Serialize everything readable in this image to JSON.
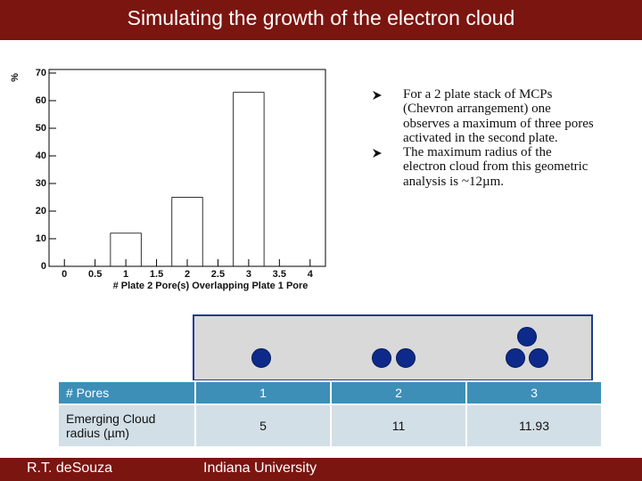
{
  "header": {
    "title": "Simulating the growth of the electron cloud"
  },
  "chart_data": {
    "type": "histogram",
    "y_label": "%",
    "x_label": "# Plate 2 Pore(s) Overlapping Plate 1 Pore",
    "bins": [
      0.75,
      1.25,
      1.75,
      2.25,
      2.75,
      3.25
    ],
    "values": [
      12,
      0,
      25,
      0,
      63
    ],
    "color": "#000000",
    "xlim": [
      -0.25,
      4.25
    ],
    "xticks": [
      0,
      0.5,
      1,
      1.5,
      2,
      2.5,
      3,
      3.5,
      4
    ],
    "ylim": [
      0,
      70
    ],
    "yticks": [
      0,
      10,
      20,
      30,
      40,
      50,
      60,
      70
    ]
  },
  "bullets": [
    "For a 2 plate stack of MCPs (Chevron arrangement) one observes a maximum of three pores activated in the second plate.",
    "The maximum radius of the electron cloud from this geometric analysis is ~12µm."
  ],
  "table": {
    "rows": [
      [
        "# Pores",
        "1",
        "2",
        "3"
      ],
      [
        "Emerging Cloud radius (µm)",
        "5",
        "11",
        "11.93"
      ]
    ]
  },
  "footer": {
    "author": "R.T. deSouza",
    "institution": "Indiana University"
  }
}
